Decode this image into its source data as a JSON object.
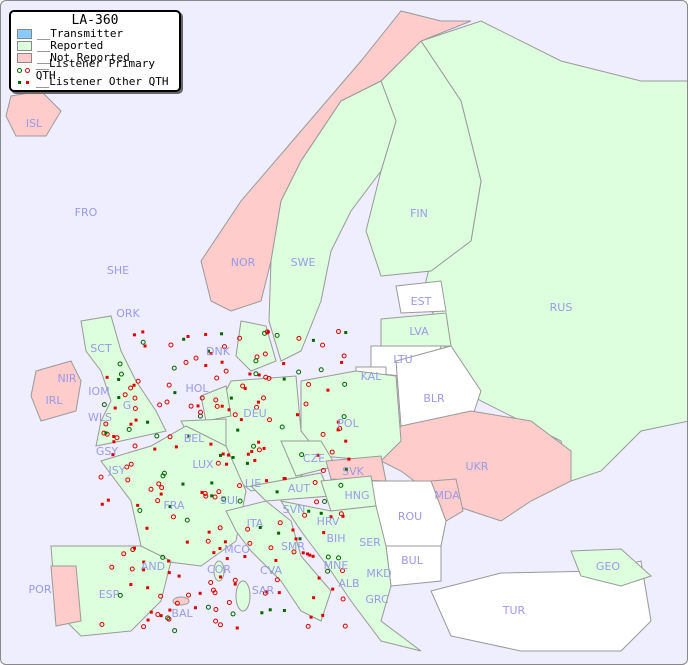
{
  "legend": {
    "title": "LA-360",
    "items": [
      {
        "label": "__Transmitter",
        "color": "#88ccff"
      },
      {
        "label": "__Reported",
        "color": "#ddffdd"
      },
      {
        "label": "__Not Reported",
        "color": "#ffcccc"
      },
      {
        "label": "__Listener Primary QTH",
        "colors": [
          "#006600",
          "#dd0000"
        ]
      },
      {
        "label": "__Listener Other QTH",
        "colors": [
          "#006600",
          "#dd0000"
        ]
      }
    ]
  },
  "colors": {
    "sea": "#eeeeff",
    "reported": "#ddffdd",
    "not_reported": "#ffcccc",
    "no_data": "#ffffff",
    "label": "#9a9ae8"
  },
  "countries": [
    {
      "code": "ISL",
      "status": "not_reported"
    },
    {
      "code": "FRO",
      "status": "no_data"
    },
    {
      "code": "SHE",
      "status": "no_data"
    },
    {
      "code": "ORK",
      "status": "reported"
    },
    {
      "code": "NOR",
      "status": "not_reported"
    },
    {
      "code": "SWE",
      "status": "reported"
    },
    {
      "code": "FIN",
      "status": "reported"
    },
    {
      "code": "EST",
      "status": "no_data"
    },
    {
      "code": "LVA",
      "status": "reported"
    },
    {
      "code": "LTU",
      "status": "no_data"
    },
    {
      "code": "KAL",
      "status": "no_data"
    },
    {
      "code": "RUS",
      "status": "reported"
    },
    {
      "code": "BLR",
      "status": "no_data"
    },
    {
      "code": "UKR",
      "status": "not_reported"
    },
    {
      "code": "MDA",
      "status": "not_reported"
    },
    {
      "code": "ROU",
      "status": "no_data"
    },
    {
      "code": "BUL",
      "status": "no_data"
    },
    {
      "code": "TUR",
      "status": "no_data"
    },
    {
      "code": "GEO",
      "status": "reported"
    },
    {
      "code": "POL",
      "status": "reported"
    },
    {
      "code": "DNK",
      "status": "reported"
    },
    {
      "code": "HOL",
      "status": "reported"
    },
    {
      "code": "BEL",
      "status": "reported"
    },
    {
      "code": "DEU",
      "status": "reported"
    },
    {
      "code": "LUX",
      "status": "reported"
    },
    {
      "code": "GSY",
      "status": "reported"
    },
    {
      "code": "JSY",
      "status": "reported"
    },
    {
      "code": "FRA",
      "status": "reported"
    },
    {
      "code": "SUI",
      "status": "reported"
    },
    {
      "code": "LIE",
      "status": "reported"
    },
    {
      "code": "AUT",
      "status": "reported"
    },
    {
      "code": "CZE",
      "status": "reported"
    },
    {
      "code": "SVK",
      "status": "not_reported"
    },
    {
      "code": "HNG",
      "status": "reported"
    },
    {
      "code": "SVN",
      "status": "reported"
    },
    {
      "code": "HRV",
      "status": "reported"
    },
    {
      "code": "BIH",
      "status": "reported"
    },
    {
      "code": "SER",
      "status": "reported"
    },
    {
      "code": "MNE",
      "status": "reported"
    },
    {
      "code": "ALB",
      "status": "not_reported"
    },
    {
      "code": "MKD",
      "status": "reported"
    },
    {
      "code": "GRC",
      "status": "reported"
    },
    {
      "code": "ITA",
      "status": "reported"
    },
    {
      "code": "SMR",
      "status": "reported"
    },
    {
      "code": "CVA",
      "status": "reported"
    },
    {
      "code": "MCO",
      "status": "reported"
    },
    {
      "code": "COR",
      "status": "reported"
    },
    {
      "code": "SAR",
      "status": "reported"
    },
    {
      "code": "AND",
      "status": "reported"
    },
    {
      "code": "ESP",
      "status": "reported"
    },
    {
      "code": "POR",
      "status": "not_reported"
    },
    {
      "code": "BAL",
      "status": "not_reported"
    },
    {
      "code": "IRL",
      "status": "not_reported"
    },
    {
      "code": "NIR",
      "status": "not_reported"
    },
    {
      "code": "SCT",
      "status": "reported"
    },
    {
      "code": "IOM",
      "status": "reported"
    },
    {
      "code": "WLS",
      "status": "not_reported"
    },
    {
      "code": "G",
      "status": "reported"
    }
  ]
}
